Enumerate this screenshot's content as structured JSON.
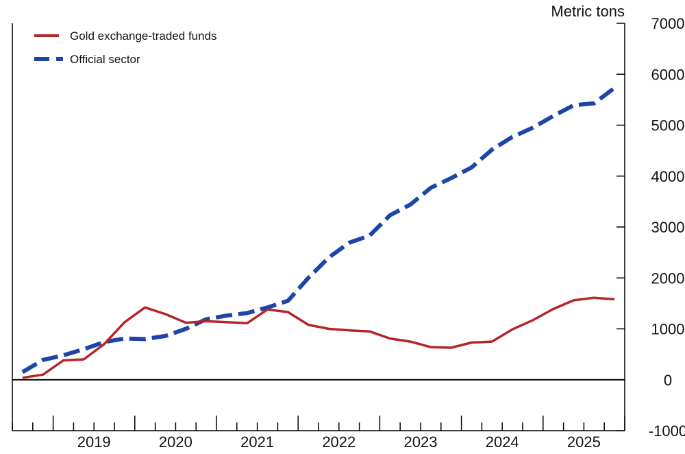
{
  "chart_data": {
    "type": "line",
    "title": "",
    "unit_label": "Metric tons",
    "xlabel": "",
    "ylabel": "",
    "x": [
      2018.625,
      2018.875,
      2019.125,
      2019.375,
      2019.625,
      2019.875,
      2020.125,
      2020.375,
      2020.625,
      2020.875,
      2021.125,
      2021.375,
      2021.625,
      2021.875,
      2022.125,
      2022.375,
      2022.625,
      2022.875,
      2023.125,
      2023.375,
      2023.625,
      2023.875,
      2024.125,
      2024.375,
      2024.625,
      2024.875,
      2025.125,
      2025.375,
      2025.625,
      2025.875
    ],
    "year_ticks": [
      "2019",
      "2020",
      "2021",
      "2022",
      "2023",
      "2024",
      "2025"
    ],
    "ylim": [
      -1000,
      7000
    ],
    "yticks": [
      "-1000",
      "0",
      "1000",
      "2000",
      "3000",
      "4000",
      "5000",
      "6000",
      "7000"
    ],
    "grid": false,
    "legend_position": "top-left",
    "series": [
      {
        "name": "Gold exchange-traded funds",
        "color": "#b5242a",
        "style": "solid",
        "values": [
          40,
          100,
          380,
          400,
          700,
          1130,
          1420,
          1290,
          1120,
          1150,
          1130,
          1110,
          1380,
          1330,
          1080,
          1000,
          970,
          950,
          810,
          750,
          640,
          630,
          730,
          750,
          990,
          1170,
          1390,
          1560,
          1610,
          1580
        ]
      },
      {
        "name": "Official sector",
        "color": "#1f44a8",
        "style": "dashed",
        "values": [
          150,
          390,
          480,
          600,
          740,
          810,
          800,
          860,
          1000,
          1190,
          1260,
          1310,
          1420,
          1550,
          2000,
          2400,
          2690,
          2830,
          3230,
          3440,
          3770,
          3960,
          4170,
          4520,
          4770,
          4950,
          5180,
          5390,
          5430,
          5730
        ]
      }
    ]
  }
}
